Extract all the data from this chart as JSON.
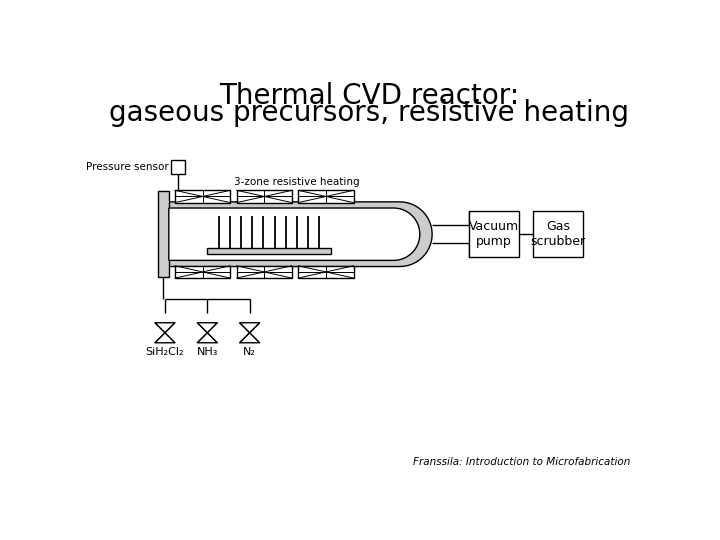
{
  "title_line1": "Thermal CVD reactor:",
  "title_line2": "gaseous precursors, resistive heating",
  "title_fontsize": 20,
  "bg_color": "#ffffff",
  "line_color": "#000000",
  "fill_color": "#cccccc",
  "label_pressure_sensor": "Pressure sensor",
  "label_3zone": "3-zone resistive heating",
  "label_vacuum_pump": "Vacuum\npump",
  "label_gas_scrubber": "Gas\nscrubber",
  "label_gas1": "SiH₂Cl₂",
  "label_gas2": "NH₃",
  "label_gas3": "N₂",
  "label_citation": "Franssila: Introduction to Microfabrication",
  "small_fontsize": 7.5,
  "medium_fontsize": 9,
  "citation_fontsize": 7.5
}
